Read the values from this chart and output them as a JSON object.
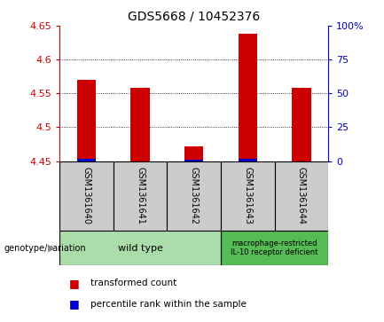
{
  "title": "GDS5668 / 10452376",
  "samples": [
    "GSM1361640",
    "GSM1361641",
    "GSM1361642",
    "GSM1361643",
    "GSM1361644"
  ],
  "red_values": [
    4.57,
    4.558,
    4.472,
    4.638,
    4.558
  ],
  "blue_values": [
    4.453,
    4.448,
    4.452,
    4.453,
    4.448
  ],
  "ylim": [
    4.45,
    4.65
  ],
  "yticks_left": [
    4.45,
    4.5,
    4.55,
    4.6,
    4.65
  ],
  "yticks_right": [
    0,
    25,
    50,
    75,
    100
  ],
  "bar_width": 0.35,
  "red_color": "#cc0000",
  "blue_color": "#0000cc",
  "bar_bottom": 4.45,
  "genotype_groups": [
    {
      "label": "wild type",
      "n_samples": 3,
      "color": "#aaddaa"
    },
    {
      "label": "macrophage-restricted\nIL-10 receptor deficient",
      "n_samples": 2,
      "color": "#55bb55"
    }
  ],
  "legend_items": [
    {
      "color": "#cc0000",
      "label": "transformed count"
    },
    {
      "color": "#0000cc",
      "label": "percentile rank within the sample"
    }
  ],
  "genotype_label": "genotype/variation",
  "sample_box_color": "#cccccc",
  "left_axis_color": "#cc0000",
  "right_axis_color": "#0000cc"
}
